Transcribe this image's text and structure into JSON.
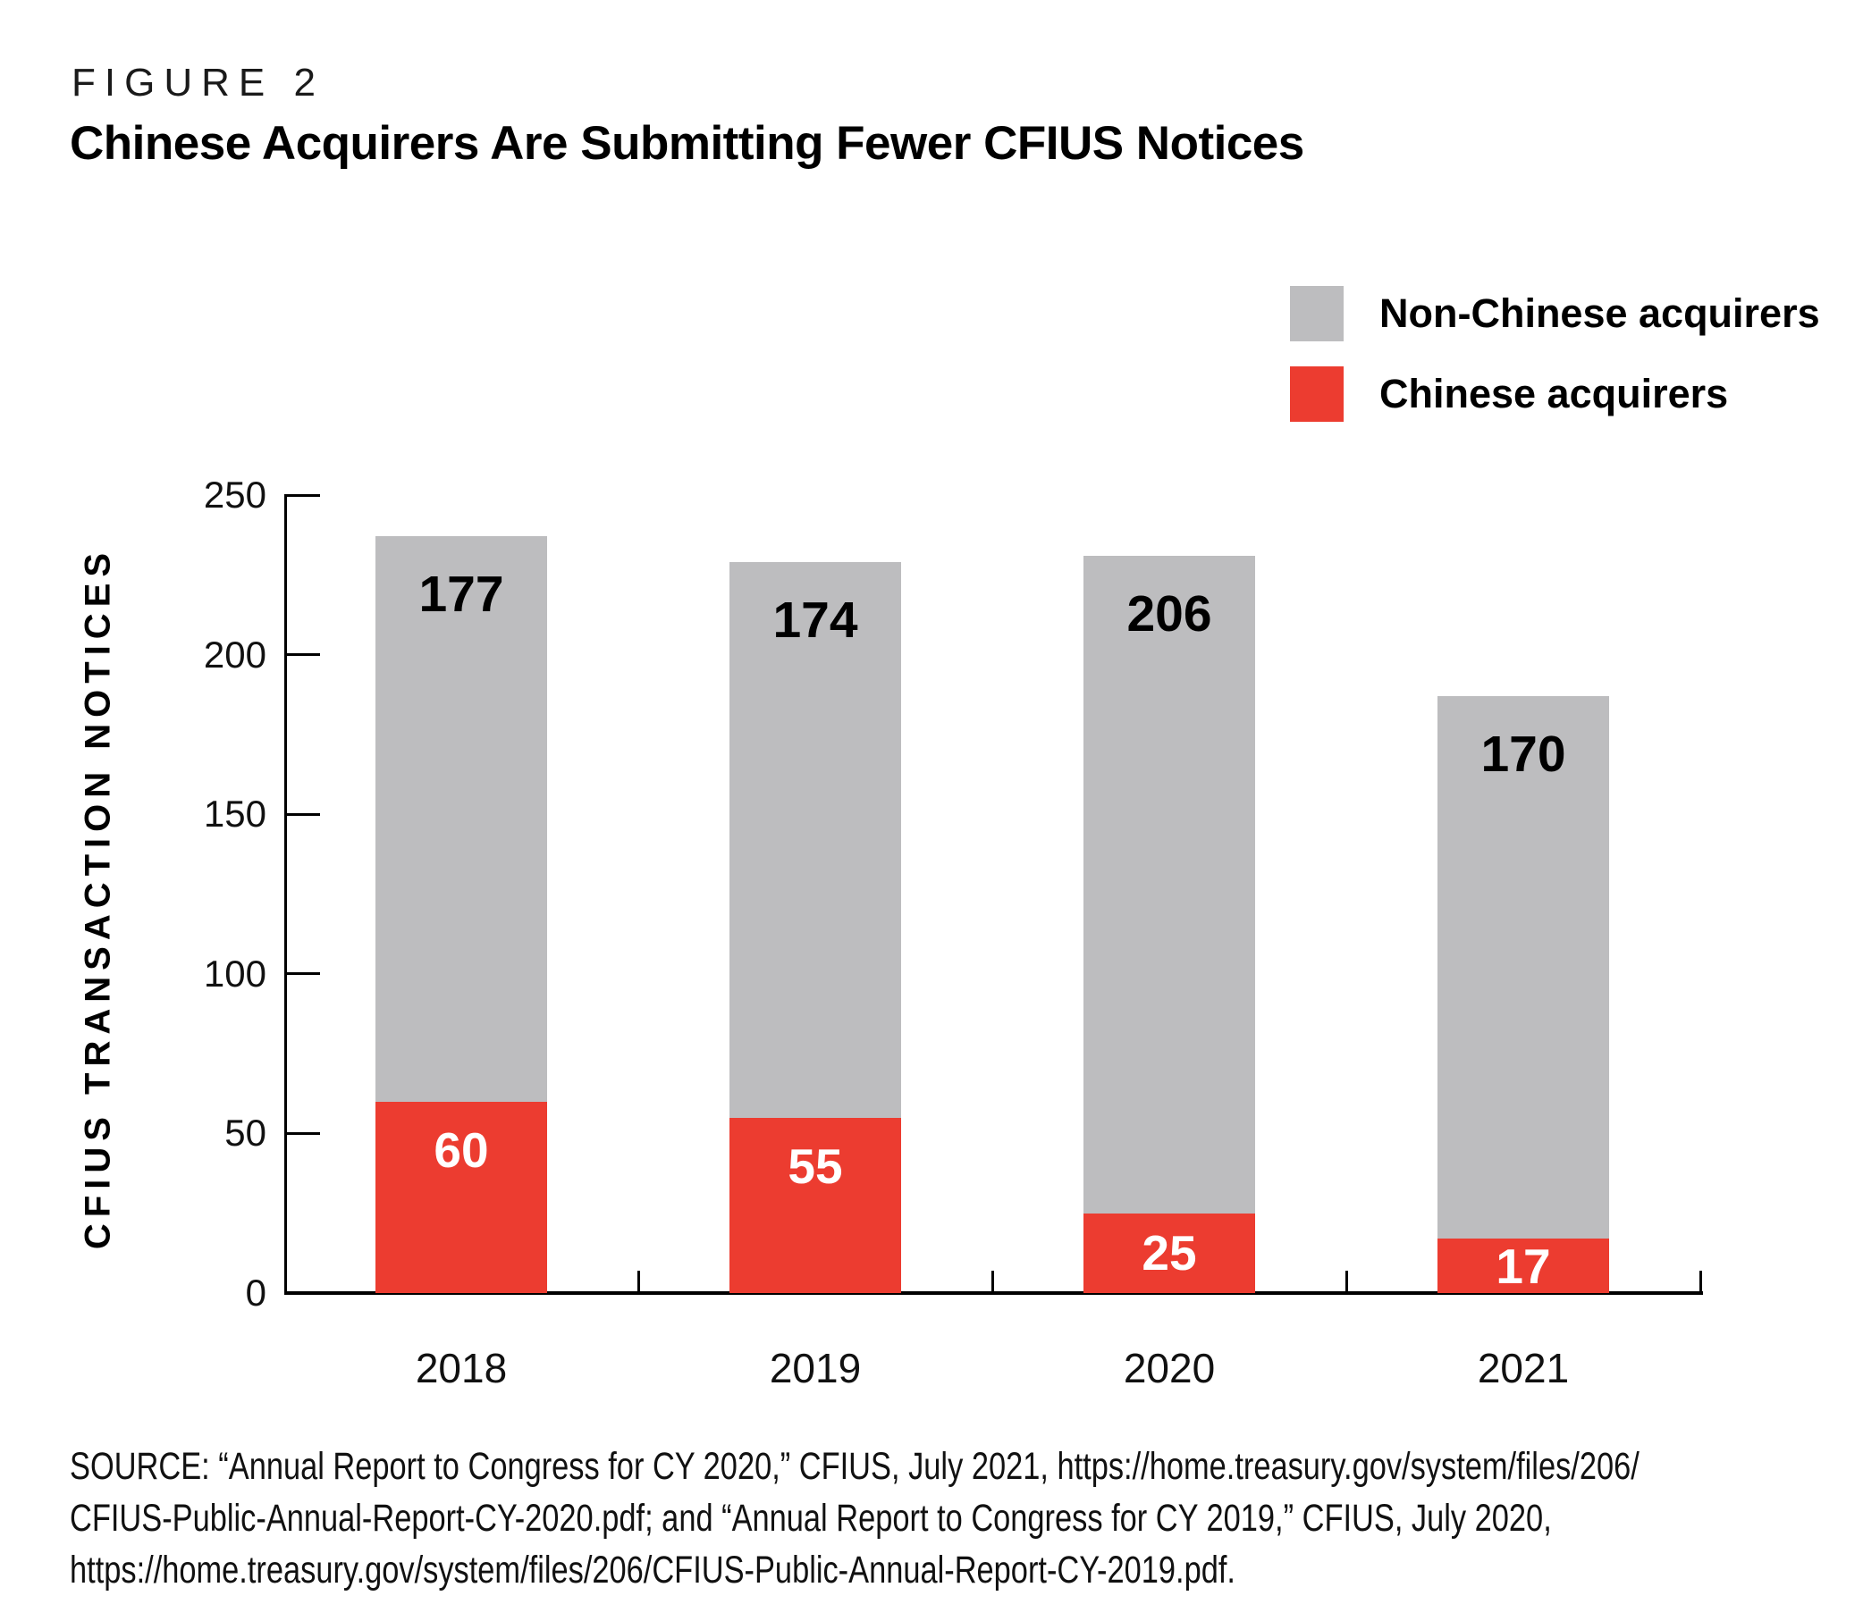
{
  "figure_label": "FIGURE 2",
  "title": "Chinese Acquirers Are Submitting Fewer CFIUS Notices",
  "legend": [
    {
      "label": "Non-Chinese acquirers",
      "color": "#bdbdbf"
    },
    {
      "label": "Chinese acquirers",
      "color": "#ec3c30"
    }
  ],
  "chart_data": {
    "type": "bar",
    "stacked": true,
    "title": "Chinese Acquirers Are Submitting Fewer CFIUS Notices",
    "categories": [
      "2018",
      "2019",
      "2020",
      "2021"
    ],
    "series": [
      {
        "name": "Chinese acquirers",
        "color": "#ec3c30",
        "label_color": "#ffffff",
        "values": [
          60,
          55,
          25,
          17
        ]
      },
      {
        "name": "Non-Chinese acquirers",
        "color": "#bdbdbf",
        "label_color": "#000000",
        "values": [
          177,
          174,
          206,
          170
        ]
      }
    ],
    "xlabel": "",
    "ylabel": "CFIUS TRANSACTION NOTICES",
    "ylim": [
      0,
      250
    ],
    "yticks": [
      0,
      50,
      100,
      150,
      200,
      250
    ],
    "grid": false,
    "legend_position": "top-right",
    "bar_value_labels_shown": true
  },
  "source": {
    "lines": [
      "SOURCE: “Annual Report to Congress for CY 2020,” CFIUS, July 2021, https://home.treasury.gov/system/files/206/",
      "CFIUS-Public-Annual-Report-CY-2020.pdf; and “Annual Report to Congress for CY 2019,” CFIUS, July 2020,",
      "https://home.treasury.gov/system/files/206/CFIUS-Public-Annual-Report-CY-2019.pdf."
    ]
  }
}
